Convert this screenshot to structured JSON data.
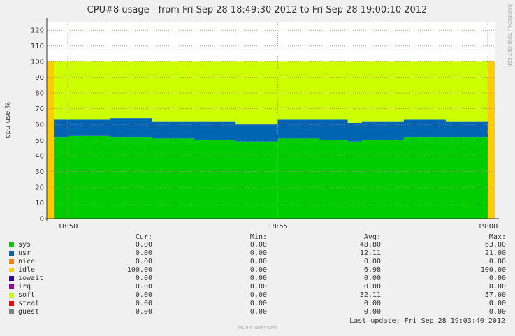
{
  "chart_data": {
    "type": "area",
    "title": "CPU#8 usage - from Fri Sep 28 18:49:30 2012 to Fri Sep 28 19:00:10 2012",
    "ylabel": "cpu use %",
    "xlabel": "",
    "ylim": [
      0,
      125
    ],
    "yticks": [
      0,
      10,
      20,
      30,
      40,
      50,
      60,
      70,
      80,
      90,
      100,
      110,
      120
    ],
    "xlim": [
      "18:49:30",
      "19:00:10"
    ],
    "xticks": [
      "18:50",
      "18:55",
      "19:00"
    ],
    "grid": true,
    "stacked": true,
    "x": [
      "18:49:30",
      "18:49:40",
      "18:50:00",
      "18:51:00",
      "18:52:00",
      "18:53:00",
      "18:54:00",
      "18:55:00",
      "18:56:00",
      "18:56:40",
      "18:57:00",
      "18:58:00",
      "18:59:00",
      "19:00:00",
      "19:00:10"
    ],
    "series": [
      {
        "name": "sys",
        "values": [
          0,
          52,
          53,
          52,
          51,
          50,
          49,
          51,
          50,
          49,
          50,
          52,
          52,
          0,
          0
        ]
      },
      {
        "name": "usr",
        "values": [
          0,
          11,
          10,
          12,
          11,
          12,
          11,
          12,
          13,
          12,
          12,
          11,
          10,
          0,
          0
        ]
      },
      {
        "name": "idle",
        "values": [
          100,
          0,
          0,
          0,
          0,
          0,
          0,
          0,
          0,
          0,
          0,
          0,
          0,
          100,
          100
        ]
      },
      {
        "name": "soft",
        "values": [
          0,
          37,
          37,
          36,
          38,
          38,
          40,
          37,
          37,
          39,
          38,
          37,
          38,
          0,
          0
        ]
      }
    ],
    "colors": {
      "sys": "#00cc00",
      "usr": "#0066b3",
      "nice": "#ff8000",
      "idle": "#ffcc00",
      "iowait": "#330099",
      "irq": "#990099",
      "soft": "#ccff00",
      "steal": "#ff0000",
      "guest": "#808080"
    }
  },
  "legend": {
    "headers": {
      "cur": "Cur:",
      "min": "Min:",
      "avg": "Avg:",
      "max": "Max:"
    },
    "rows": [
      {
        "name": "sys",
        "color": "#00cc00",
        "cur": "0.00",
        "min": "0.00",
        "avg": "48.80",
        "max": "63.00"
      },
      {
        "name": "usr",
        "color": "#0066b3",
        "cur": "0.00",
        "min": "0.00",
        "avg": "12.11",
        "max": "21.00"
      },
      {
        "name": "nice",
        "color": "#ff8000",
        "cur": "0.00",
        "min": "0.00",
        "avg": "0.00",
        "max": "0.00"
      },
      {
        "name": "idle",
        "color": "#ffcc00",
        "cur": "100.00",
        "min": "0.00",
        "avg": "6.98",
        "max": "100.00"
      },
      {
        "name": "iowait",
        "color": "#330099",
        "cur": "0.00",
        "min": "0.00",
        "avg": "0.00",
        "max": "0.00"
      },
      {
        "name": "irq",
        "color": "#990099",
        "cur": "0.00",
        "min": "0.00",
        "avg": "0.00",
        "max": "0.00"
      },
      {
        "name": "soft",
        "color": "#ccff00",
        "cur": "0.00",
        "min": "0.00",
        "avg": "32.11",
        "max": "57.00"
      },
      {
        "name": "steal",
        "color": "#ff0000",
        "cur": "0.00",
        "min": "0.00",
        "avg": "0.00",
        "max": "0.00"
      },
      {
        "name": "guest",
        "color": "#808080",
        "cur": "0.00",
        "min": "0.00",
        "avg": "0.00",
        "max": "0.00"
      }
    ]
  },
  "last_update": "Last update:  Fri Sep 28 19:03:40 2012",
  "footer": "Munin unknown",
  "watermark": "RRDTOOL / TOBI OETIKER"
}
